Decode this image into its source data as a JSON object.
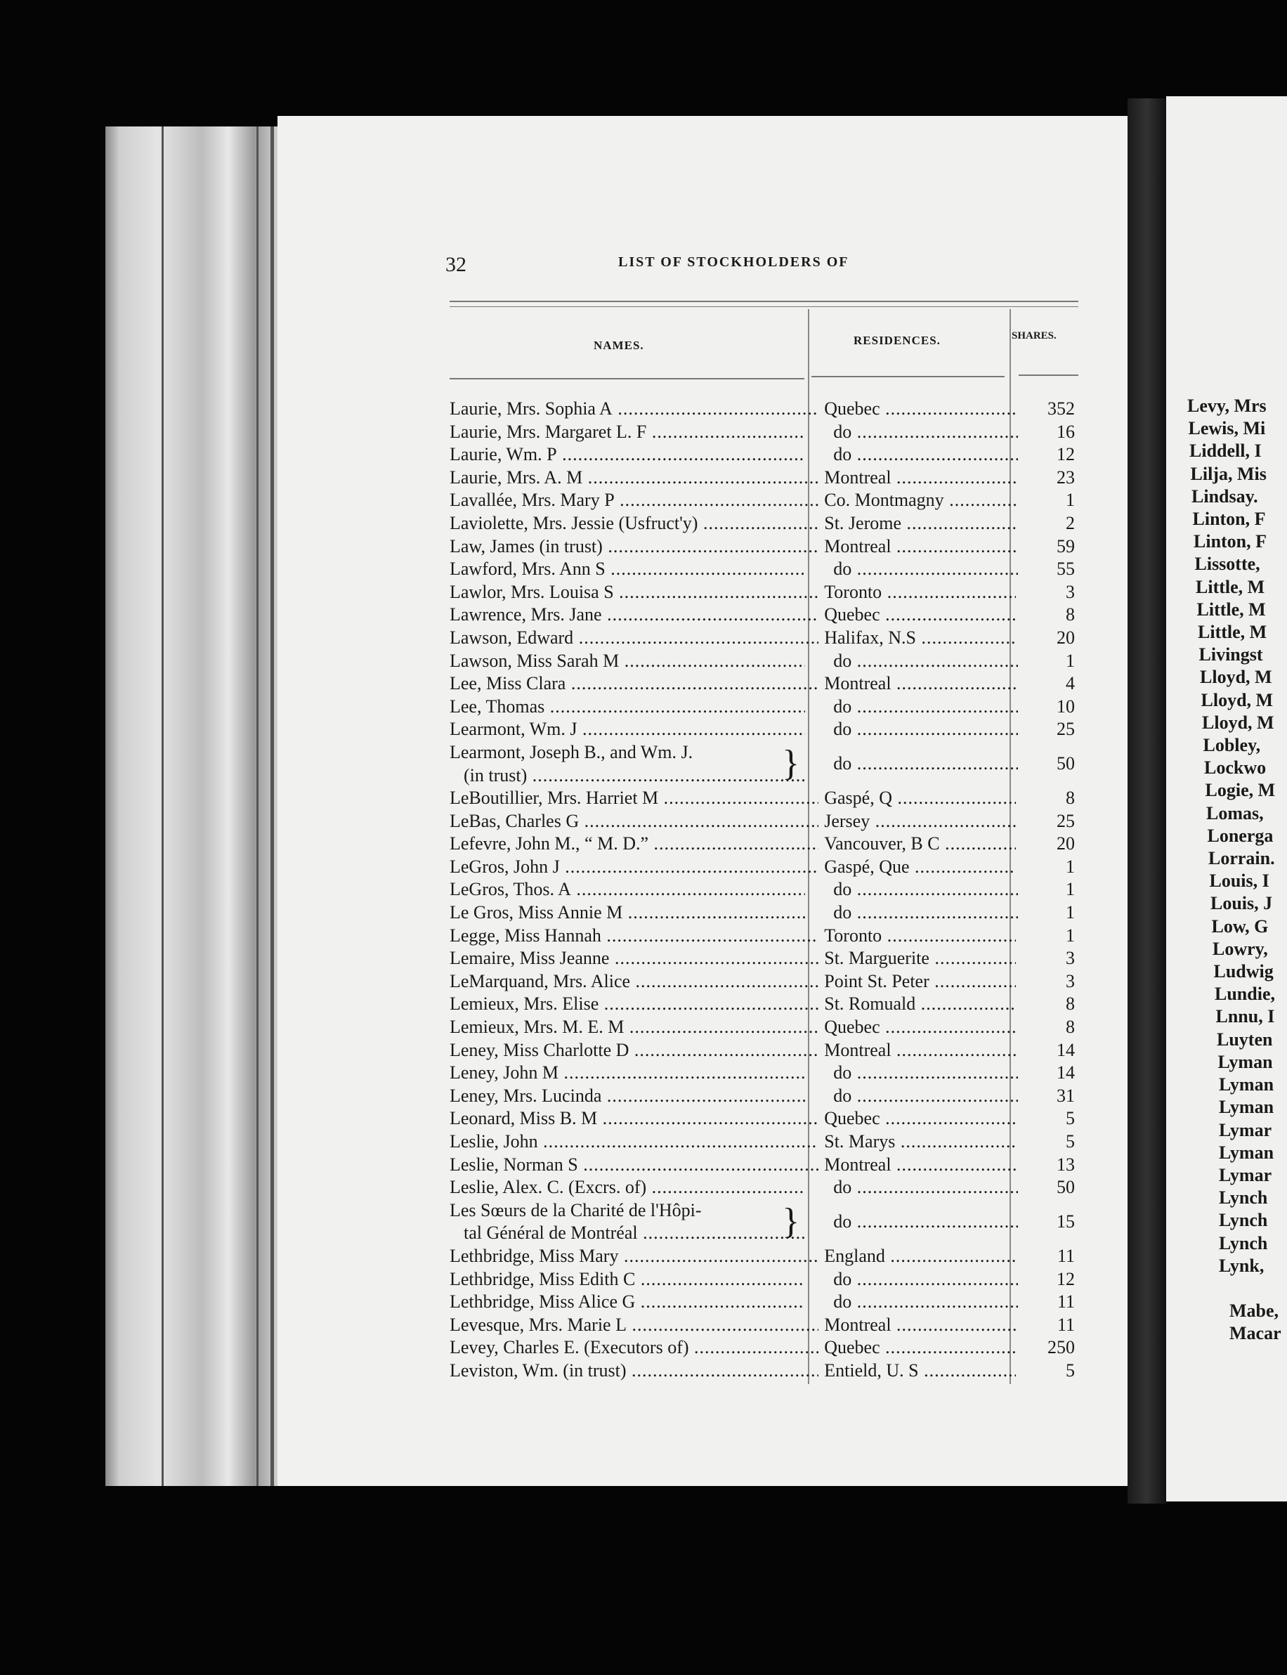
{
  "header": {
    "page_number": "32",
    "title": "LIST OF STOCKHOLDERS OF"
  },
  "columns": {
    "names": "NAMES.",
    "residences": "RESIDENCES.",
    "shares": "SHARES."
  },
  "rows": [
    {
      "name": "Laurie, Mrs. Sophia A",
      "residence": "Quebec",
      "shares": "352"
    },
    {
      "name": "Laurie, Mrs. Margaret L. F",
      "residence": "do",
      "shares": "16"
    },
    {
      "name": "Laurie, Wm. P",
      "residence": "do",
      "shares": "12"
    },
    {
      "name": "Laurie, Mrs. A. M",
      "residence": "Montreal",
      "shares": "23"
    },
    {
      "name": "Lavallée, Mrs. Mary P",
      "residence": "Co. Montmagny",
      "shares": "1"
    },
    {
      "name": "Laviolette, Mrs. Jessie (Usfruct'y)",
      "residence": "St. Jerome",
      "shares": "2"
    },
    {
      "name": "Law, James (in trust)",
      "residence": "Montreal",
      "shares": "59"
    },
    {
      "name": "Lawford, Mrs. Ann S",
      "residence": "do",
      "shares": "55"
    },
    {
      "name": "Lawlor, Mrs. Louisa S",
      "residence": "Toronto",
      "shares": "3"
    },
    {
      "name": "Lawrence, Mrs. Jane",
      "residence": "Quebec",
      "shares": "8"
    },
    {
      "name": "Lawson, Edward",
      "residence": "Halifax, N.S",
      "shares": "20"
    },
    {
      "name": "Lawson, Miss Sarah M",
      "residence": "do",
      "shares": "1"
    },
    {
      "name": "Lee, Miss Clara",
      "residence": "Montreal",
      "shares": "4"
    },
    {
      "name": "Lee, Thomas",
      "residence": "do",
      "shares": "10"
    },
    {
      "name": "Learmont, Wm. J",
      "residence": "do",
      "shares": "25"
    },
    {
      "name": "Learmont, Joseph B., and Wm. J.",
      "name2": "(in trust)",
      "residence": "do",
      "shares": "50"
    },
    {
      "name": "LeBoutillier, Mrs. Harriet M",
      "residence": "Gaspé, Q",
      "shares": "8"
    },
    {
      "name": "LeBas, Charles G",
      "residence": "Jersey",
      "shares": "25"
    },
    {
      "name": "Lefevre, John M., “ M. D.”",
      "residence": "Vancouver, B C",
      "shares": "20"
    },
    {
      "name": "LeGros, John J",
      "residence": "Gaspé, Que",
      "shares": "1"
    },
    {
      "name": "LeGros, Thos. A",
      "residence": "do",
      "shares": "1"
    },
    {
      "name": "Le Gros, Miss Annie M",
      "residence": "do",
      "shares": "1"
    },
    {
      "name": "Legge, Miss Hannah",
      "residence": "Toronto",
      "shares": "1"
    },
    {
      "name": "Lemaire, Miss Jeanne",
      "residence": "St. Marguerite",
      "shares": "3"
    },
    {
      "name": "LeMarquand, Mrs. Alice",
      "residence": "Point St. Peter",
      "shares": "3"
    },
    {
      "name": "Lemieux, Mrs. Elise",
      "residence": "St. Romuald",
      "shares": "8"
    },
    {
      "name": "Lemieux, Mrs. M. E. M",
      "residence": "Quebec",
      "shares": "8"
    },
    {
      "name": "Leney, Miss Charlotte D",
      "residence": "Montreal",
      "shares": "14"
    },
    {
      "name": "Leney, John M",
      "residence": "do",
      "shares": "14"
    },
    {
      "name": "Leney, Mrs. Lucinda",
      "residence": "do",
      "shares": "31"
    },
    {
      "name": "Leonard, Miss B. M",
      "residence": "Quebec",
      "shares": "5"
    },
    {
      "name": "Leslie, John",
      "residence": "St. Marys",
      "shares": "5"
    },
    {
      "name": "Leslie, Norman S",
      "residence": "Montreal",
      "shares": "13"
    },
    {
      "name": "Leslie, Alex. C. (Excrs. of)",
      "residence": "do",
      "shares": "50"
    },
    {
      "name": "Les Sœurs de la Charité de l'Hôpi-",
      "name2": "tal Général de Montréal",
      "residence": "do",
      "shares": "15"
    },
    {
      "name": "Lethbridge, Miss Mary",
      "residence": "England",
      "shares": "11"
    },
    {
      "name": "Lethbridge, Miss Edith C",
      "residence": "do",
      "shares": "12"
    },
    {
      "name": "Lethbridge, Miss Alice G",
      "residence": "do",
      "shares": "11"
    },
    {
      "name": "Levesque, Mrs. Marie L",
      "residence": "Montreal",
      "shares": "11"
    },
    {
      "name": "Levey, Charles E. (Executors of)",
      "residence": "Quebec",
      "shares": "250"
    },
    {
      "name": "Leviston, Wm. (in trust)",
      "residence": "Entield, U. S",
      "shares": "5"
    }
  ],
  "right_page": {
    "names_a": [
      "Levy, Mrs",
      "Lewis, Mi",
      "Liddell, I",
      "Lilja, Mis",
      "Lindsay.",
      "Linton, F",
      "Linton, F",
      "Lissotte,",
      "Little, M",
      "Little, M",
      "Little, M",
      "Livingst",
      "Lloyd, M",
      "Lloyd, M",
      "Lloyd, M",
      "Lobley,",
      "Lockwo",
      "Logie, M",
      "Lomas,",
      "Lonerga",
      "Lorrain.",
      "Louis, I",
      "Louis, J",
      "Low, G",
      "Lowry,",
      "Ludwig",
      "Lundie,",
      "Lnnu, I",
      "Luyten",
      "Lyman",
      "Lyman",
      "Lyman",
      "Lymar",
      "Lyman",
      "Lymar",
      "Lynch",
      "Lynch",
      "Lynch",
      "Lynk,"
    ],
    "names_b": [
      "Mabe,",
      "Macar"
    ]
  }
}
